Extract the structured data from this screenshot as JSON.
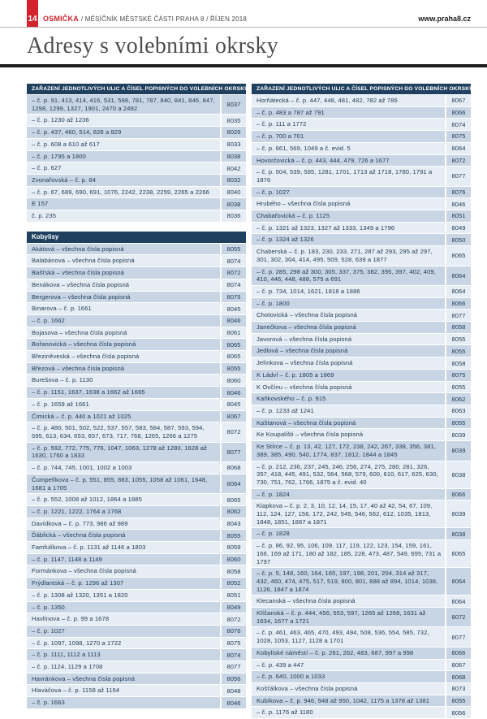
{
  "page": {
    "page_number": "14",
    "brand": "OSMIČKA",
    "masthead_rest": "/ MĚSÍČNÍK MĚSTSKÉ ČÁSTI PRAHA 8 / ŘÍJEN 2018",
    "website": "www.praha8.cz",
    "title": "Adresy s volebními okrsky"
  },
  "colors": {
    "brand_red": "#d2232e",
    "table_header_navy": "#20405f",
    "stripe_dark": "#c8d5e4",
    "stripe_light": "#e7edf4",
    "text_navy": "#1f3a55"
  },
  "columns": [
    {
      "side": "left",
      "tables": [
        {
          "header": "ZAŘAZENÍ JEDNOTLIVÝCH ULIC A ČÍSEL POPISNÝCH DO VOLEBNÍCH OKRSKŮ",
          "header_type": "column-title",
          "first_shade": "dark",
          "rows": [
            {
              "label": "– č. p. 91, 413, 414, 416, 531, 598, 781, 787, 840, 841, 846, 847, 1298, 1299, 1327, 1901, 2470 a 2492",
              "okrsek": "8037"
            },
            {
              "label": "– č. p. 1230 až 1236",
              "okrsek": "8035"
            },
            {
              "label": "– č. p. 437, 460, 514, 828 a 829",
              "okrsek": "8026"
            },
            {
              "label": "– č. p. 608 a 610 až 617",
              "okrsek": "8033"
            },
            {
              "label": "– č. p. 1795 a 1800",
              "okrsek": "8038"
            },
            {
              "label": "– č. p. 627",
              "okrsek": "8042"
            },
            {
              "label": "Zvonařovská – č. p. 84",
              "okrsek": "8032"
            },
            {
              "label": "– č. p. 67, 689, 690, 691, 1076, 2242, 2238, 2259, 2265 a 2266",
              "okrsek": "8040"
            },
            {
              "label": "E 157",
              "okrsek": "8038"
            },
            {
              "label": "č. p. 235",
              "okrsek": "8036"
            }
          ]
        },
        {
          "header": "Kobylisy",
          "header_type": "section",
          "first_shade": "dark",
          "rows": [
            {
              "label": "Akátová – všechna čísla popisná",
              "okrsek": "8055"
            },
            {
              "label": "Balabánova – všechna čísla popisná",
              "okrsek": "8074"
            },
            {
              "label": "Bašťská – všechna čísla popisná",
              "okrsek": "8072"
            },
            {
              "label": "Benákova – všechna čísla popisná",
              "okrsek": "8074"
            },
            {
              "label": "Bergerova – všechna čísla popisná",
              "okrsek": "8075"
            },
            {
              "label": "Binarova – č. p. 1661",
              "okrsek": "8045"
            },
            {
              "label": "– č. p. 1662",
              "okrsek": "8046"
            },
            {
              "label": "Bojasova – všechna čísla popisná",
              "okrsek": "8061"
            },
            {
              "label": "Bořanovická – všechna čísla popisná",
              "okrsek": "8065"
            },
            {
              "label": "Březiněveská – všechna čísla popisná",
              "okrsek": "8065"
            },
            {
              "label": "Březová – všechna čísla popisná",
              "okrsek": "8055"
            },
            {
              "label": "Burešova – č. p. 1130",
              "okrsek": "8060"
            },
            {
              "label": "– č. p. 1151, 1637, 1638 a 1662 až 1665",
              "okrsek": "8046"
            },
            {
              "label": "– č. p. 1659 až 1661",
              "okrsek": "8045"
            },
            {
              "label": "Čimická – č. p. 440 a 1021 až 1025",
              "okrsek": "8067"
            },
            {
              "label": "– č. p. 480, 501, 502, 522, 537, 557, 583, 584, 587, 593, 594, 595, 613, 634, 653, 657, 673, 717, 768, 1265, 1266 a 1275",
              "okrsek": "8072"
            },
            {
              "label": "– č. p. 592, 772, 775, 776, 1047, 1063, 1278 až 1280, 1628 až 1630, 1760 a 1833",
              "okrsek": "8077"
            },
            {
              "label": "– č. p. 744, 745, 1001, 1002 a 1003",
              "okrsek": "8068"
            },
            {
              "label": "Čumpelíkova – č. p. 551, 855, 883, 1055, 1058 až 1061, 1648, 1681 a 1705",
              "okrsek": "8064"
            },
            {
              "label": "– č. p. 552, 1008 až 1012, 1864 a 1885",
              "okrsek": "8065"
            },
            {
              "label": "– č. p. 1221, 1222, 1764 a 1768",
              "okrsek": "8062"
            },
            {
              "label": "Davídkova – č. p. 773, 986 až 989",
              "okrsek": "8043"
            },
            {
              "label": "Ďáblická – všechna čísla popisná",
              "okrsek": "8055"
            },
            {
              "label": "Famfulíkova – č. p. 1131 až 1146 a 1803",
              "okrsek": "8059"
            },
            {
              "label": "– č. p. 1147, 1148 a 1149",
              "okrsek": "8060"
            },
            {
              "label": "Formánkova – všechna čísla popisná",
              "okrsek": "8058"
            },
            {
              "label": "Frýdlantská – č. p. 1296 až 1307",
              "okrsek": "8052"
            },
            {
              "label": "– č. p. 1308 až 1320, 1351 a 1820",
              "okrsek": "8051"
            },
            {
              "label": "– č. p. 1350",
              "okrsek": "8049"
            },
            {
              "label": "Havlínova – č. p. 99 a 1678",
              "okrsek": "8072"
            },
            {
              "label": "– č. p. 1027",
              "okrsek": "8076"
            },
            {
              "label": "– č. p. 1097, 1098, 1270 a 1722",
              "okrsek": "8075"
            },
            {
              "label": "– č. p. 1111, 1112 a 1113",
              "okrsek": "8074"
            },
            {
              "label": "– č. p. 1124, 1129 a 1708",
              "okrsek": "8077"
            },
            {
              "label": "Havránkova – všechna čísla popisná",
              "okrsek": "8056"
            },
            {
              "label": "Hlaváčova – č. p. 1158 až 1164",
              "okrsek": "8048"
            },
            {
              "label": "– č. p. 1663",
              "okrsek": "8046"
            }
          ]
        }
      ]
    },
    {
      "side": "right",
      "tables": [
        {
          "header": "ZAŘAZENÍ JEDNOTLIVÝCH ULIC A ČÍSEL POPISNÝCH DO VOLEBNÍCH OKRSKŮ",
          "header_type": "column-title",
          "first_shade": "light",
          "rows": [
            {
              "label": "Horňátecká – č. p. 447, 448, 481, 482, 782 až 786",
              "okrsek": "8067"
            },
            {
              "label": "– č. p. 483 a 787 až 791",
              "okrsek": "8066"
            },
            {
              "label": "– č. p. 111 a 1772",
              "okrsek": "8074"
            },
            {
              "label": "– č. p. 700 a 701",
              "okrsek": "8075"
            },
            {
              "label": "– č. p. 661, 569, 1049 a č. evid. 5",
              "okrsek": "8064"
            },
            {
              "label": "Hovorčovická – č. p. 443, 444, 479, 726 a 1677",
              "okrsek": "8072"
            },
            {
              "label": "– č. p. 504, 539, 585, 1281, 1701, 1713 až 1718, 1780, 1791 a 1876",
              "okrsek": "8077"
            },
            {
              "label": "– č. p. 1027",
              "okrsek": "8076"
            },
            {
              "label": "Hrubého – všechna čísla popisná",
              "okrsek": "8046"
            },
            {
              "label": "Chabařovická – č. p. 1125",
              "okrsek": "8051"
            },
            {
              "label": "– č. p. 1321 až 1323, 1327 až 1333, 1349 a 1796",
              "okrsek": "8049"
            },
            {
              "label": "– č. p. 1324 až 1326",
              "okrsek": "8050"
            },
            {
              "label": "Chaberská – č. p. 183, 230, 233, 271, 287 až 293, 295 až 297, 301, 302, 304, 414, 495, 509, 528, 639 a 1877",
              "okrsek": "8065"
            },
            {
              "label": "– č. p. 285, 298 až 300, 305, 337, 375, 382, 395, 397, 402, 409, 410, 446, 448, 488, 575 a 691",
              "okrsek": "8064"
            },
            {
              "label": "– č. p. 734, 1014, 1621, 1818 a 1886",
              "okrsek": "8064"
            },
            {
              "label": "– č. p. 1800",
              "okrsek": "8066"
            },
            {
              "label": "Chotovická – všechna čísla popisná",
              "okrsek": "8077"
            },
            {
              "label": "Janečkova – všechna čísla popisná",
              "okrsek": "8058"
            },
            {
              "label": "Javorová – všechna čísla popisná",
              "okrsek": "8055"
            },
            {
              "label": "Jedlová – všechna čísla popisná",
              "okrsek": "8055"
            },
            {
              "label": "Jelínkova – všechna čísla popisná",
              "okrsek": "8058"
            },
            {
              "label": "K Ládví – č. p. 1805 a 1869",
              "okrsek": "8075"
            },
            {
              "label": "K Ovčínu – všechna čísla popisná",
              "okrsek": "8055"
            },
            {
              "label": "Kaňkovského – č. p. 915",
              "okrsek": "8062"
            },
            {
              "label": "– č. p. 1233 až 1241",
              "okrsek": "8063"
            },
            {
              "label": "Kaštanová – všechna čísla popisná",
              "okrsek": "8055"
            },
            {
              "label": "Ke Koupališti – všechna čísla popisná",
              "okrsek": "8039"
            },
            {
              "label": "Ke Stírce – č. p. 13, 42, 127, 172, 238, 242, 267, 338, 356, 381, 389, 385, 490, 540, 1774, 837, 1812, 1844 a 1845",
              "okrsek": "8039"
            },
            {
              "label": "– č. p. 212, 236, 237, 245, 246, 256, 274, 275, 280, 281, 326, 357, 418, 445, 491, 532, 564, 568, 579, 600, 610, 617, 625, 630, 730, 751, 762, 1766, 1875 a č. evid. 40",
              "okrsek": "8038"
            },
            {
              "label": "– č. p. 1824",
              "okrsek": "8066"
            },
            {
              "label": "Klapkova – č. p. 2, 3, 10, 12, 14, 15, 17, 40 až 42, 54, 67, 109, 112, 124, 127, 156, 172, 242, 545, 546, 562, 612, 1035, 1813, 1848, 1851, 1867 a 1871",
              "okrsek": "8039"
            },
            {
              "label": "– č. p. 1828",
              "okrsek": "8038"
            },
            {
              "label": "– č. p. 86, 92, 95, 106, 109, 117, 119, 122, 123, 154, 159, 161, 166, 169 až 171, 180 až 182, 185, 228, 473, 487, 549, 695, 731 a 1797",
              "okrsek": "8065"
            },
            {
              "label": "– č. p. 5, 148, 160, 164, 165, 197, 198, 201, 204, 314 až 317, 432, 460, 474, 475, 517, 519, 800, 801, 888 až 894, 1014, 1038, 1126, 1847 a 1874",
              "okrsek": "8064"
            },
            {
              "label": "Klecanská – všechna čísla popisná",
              "okrsek": "8064"
            },
            {
              "label": "Klíčanská – č. p. 444, 456, 553, 597, 1265 až 1268, 1631 až 1634, 1677 a 1721",
              "okrsek": "8072"
            },
            {
              "label": "– č. p. 461, 463, 465, 470, 493, 494, 508, 536, 554, 585, 732, 1028, 1053, 1127, 1128 a 1701",
              "okrsek": "8077"
            },
            {
              "label": "Kobyliské náměstí – č. p. 261, 262, 483, 687, 997 a 998",
              "okrsek": "8066"
            },
            {
              "label": "– č. p. 439 a 447",
              "okrsek": "8067"
            },
            {
              "label": "– č. p. 640, 1000 a 1033",
              "okrsek": "8068"
            },
            {
              "label": "Košťálkova – všechna čísla popisná",
              "okrsek": "8073"
            },
            {
              "label": "Kubíkova – č. p. 946, 948 až 950, 1042, 1175 a 1378 až 1381",
              "okrsek": "8055"
            },
            {
              "label": "– č. p. 1176 až 1180",
              "okrsek": "8056"
            }
          ]
        }
      ]
    }
  ]
}
